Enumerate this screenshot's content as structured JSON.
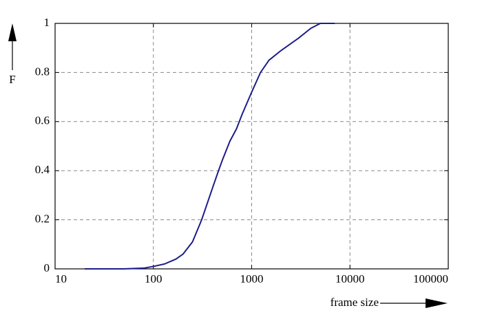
{
  "chart_data": {
    "type": "line",
    "x_label": "frame size",
    "y_label": "F",
    "xscale": "log",
    "xlim": [
      10,
      100000
    ],
    "xticks": [
      10,
      100,
      1000,
      10000,
      100000
    ],
    "ylim": [
      0,
      1
    ],
    "yticks": [
      0,
      0.2,
      0.4,
      0.6,
      0.8,
      1
    ],
    "grid": true,
    "series": [
      {
        "color": "#1c1c8a",
        "x": [
          20,
          50,
          80,
          100,
          130,
          170,
          200,
          250,
          310,
          400,
          460,
          500,
          600,
          700,
          800,
          1000,
          1230,
          1500,
          2000,
          3000,
          4000,
          5000,
          7000
        ],
        "values": [
          0,
          0,
          0.003,
          0.01,
          0.02,
          0.04,
          0.06,
          0.11,
          0.2,
          0.33,
          0.4,
          0.44,
          0.52,
          0.57,
          0.63,
          0.72,
          0.8,
          0.85,
          0.89,
          0.94,
          0.98,
          1.0,
          1.0
        ]
      }
    ]
  }
}
